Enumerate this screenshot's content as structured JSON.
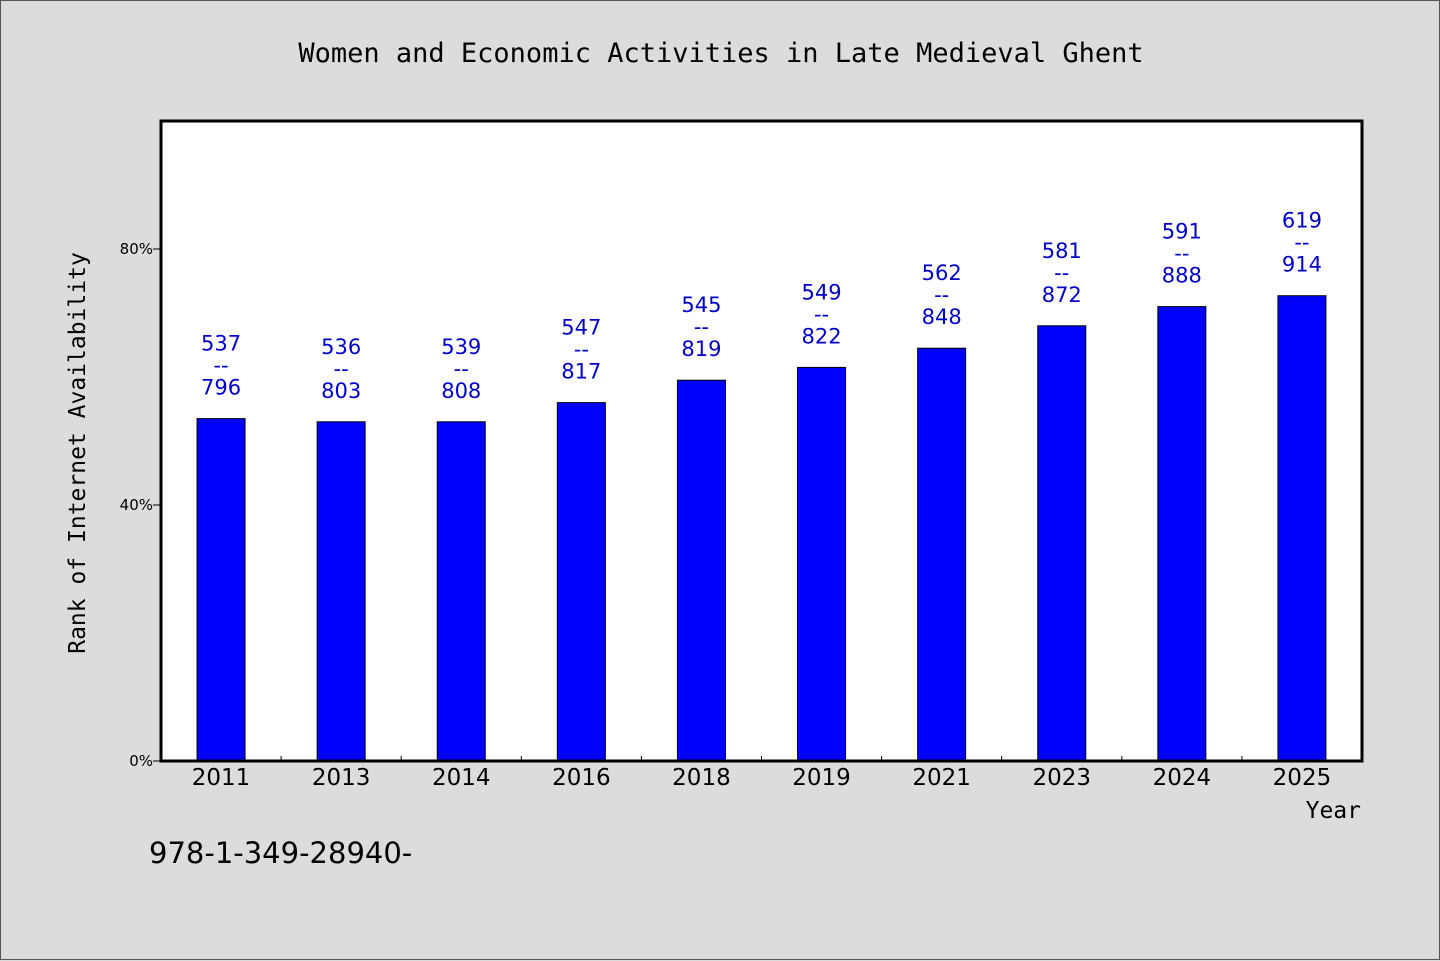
{
  "chart_data": {
    "type": "bar",
    "title": "Women and Economic Activities in Late Medieval Ghent",
    "xlabel": "Year",
    "ylabel": "Rank of Internet Availability",
    "categories": [
      "2011",
      "2013",
      "2014",
      "2016",
      "2018",
      "2019",
      "2021",
      "2023",
      "2024",
      "2025"
    ],
    "series": [
      {
        "values": [
          53.5,
          53.0,
          53.0,
          56.0,
          59.5,
          61.5,
          64.5,
          68.0,
          71.0,
          72.7
        ]
      }
    ],
    "data_labels": [
      {
        "top": "537",
        "sep": "--",
        "bottom": "796"
      },
      {
        "top": "536",
        "sep": "--",
        "bottom": "803"
      },
      {
        "top": "539",
        "sep": "--",
        "bottom": "808"
      },
      {
        "top": "547",
        "sep": "--",
        "bottom": "817"
      },
      {
        "top": "545",
        "sep": "--",
        "bottom": "819"
      },
      {
        "top": "549",
        "sep": "--",
        "bottom": "822"
      },
      {
        "top": "562",
        "sep": "--",
        "bottom": "848"
      },
      {
        "top": "581",
        "sep": "--",
        "bottom": "872"
      },
      {
        "top": "591",
        "sep": "--",
        "bottom": "888"
      },
      {
        "top": "619",
        "sep": "--",
        "bottom": "914"
      }
    ],
    "ylim": [
      0,
      100
    ],
    "yticks": [
      0,
      40,
      80
    ],
    "ytick_labels": [
      "0%",
      "40%",
      "80%"
    ],
    "grid": false,
    "legend": "none",
    "bar_color": "#0000ff",
    "label_color": "#0000cc"
  },
  "footnote": "978-1-349-28940-"
}
